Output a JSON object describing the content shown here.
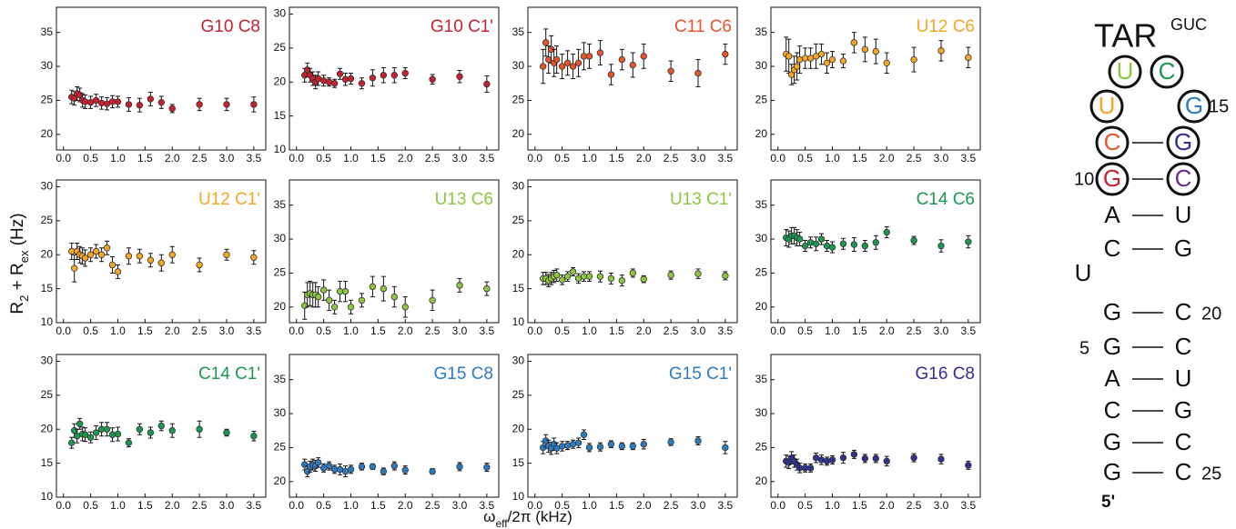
{
  "axis_labels": {
    "x": [
      "ω",
      "eff",
      "/2π (kHz)"
    ],
    "y": [
      "R",
      "2",
      " + R",
      "ex",
      " (Hz)"
    ]
  },
  "chart_data": [
    {
      "type": "scatter",
      "title": "G10 C8",
      "color": "#c8202f",
      "x": [
        0.15,
        0.2,
        0.25,
        0.3,
        0.35,
        0.4,
        0.5,
        0.6,
        0.7,
        0.8,
        0.9,
        1.0,
        1.2,
        1.4,
        1.6,
        1.8,
        2.0,
        2.5,
        3.0,
        3.5
      ],
      "values": [
        25.5,
        25.3,
        26,
        25.8,
        25,
        24.8,
        24.7,
        25,
        24.6,
        24.5,
        24.8,
        24.8,
        24.4,
        24.3,
        25.2,
        24.7,
        23.8,
        24.4,
        24.4,
        24.4
      ],
      "errors": [
        1,
        1,
        1,
        1,
        1,
        1,
        0.9,
        0.9,
        0.9,
        0.9,
        0.9,
        0.8,
        1,
        1,
        1,
        0.9,
        0.6,
        0.9,
        0.9,
        1.1
      ],
      "xlim": [
        -0.13,
        3.72
      ],
      "ylim": [
        17.7,
        38.7
      ],
      "xticks": [
        {
          "value": 0,
          "label": "0.0"
        },
        0.5,
        {
          "value": 1,
          "label": "1.0"
        },
        1.5,
        {
          "value": 2,
          "label": "2.0"
        },
        2.5,
        {
          "value": 3,
          "label": "3.0"
        },
        3.5
      ],
      "yticks": [
        20,
        25,
        30,
        35
      ]
    },
    {
      "type": "scatter",
      "title": "G10 C1'",
      "color": "#c8202f",
      "x": [
        0.15,
        0.2,
        0.25,
        0.3,
        0.35,
        0.4,
        0.5,
        0.6,
        0.7,
        0.8,
        0.9,
        1.0,
        1.2,
        1.4,
        1.6,
        1.8,
        2.0,
        2.5,
        3.0,
        3.5
      ],
      "values": [
        21,
        21.8,
        21,
        20.5,
        20,
        20.5,
        20.2,
        20,
        19.8,
        21.2,
        20.4,
        20.5,
        19.8,
        20.6,
        21,
        21,
        21.3,
        20.4,
        20.8,
        19.7
      ],
      "errors": [
        1,
        1,
        1,
        1,
        1,
        1,
        0.8,
        0.6,
        0.6,
        0.8,
        0.9,
        0.8,
        0.8,
        1.2,
        1.1,
        1.1,
        0.8,
        0.7,
        0.9,
        1.2
      ],
      "xlim": [
        -0.13,
        3.72
      ],
      "ylim": [
        10,
        31
      ],
      "xticks": [
        {
          "value": 0,
          "label": "0.0"
        },
        0.5,
        {
          "value": 1,
          "label": "1.0"
        },
        1.5,
        {
          "value": 2,
          "label": "2.0"
        },
        2.5,
        {
          "value": 3,
          "label": "3.0"
        },
        3.5
      ],
      "yticks": [
        10,
        15,
        20,
        25,
        30
      ]
    },
    {
      "type": "scatter",
      "title": "C11 C6",
      "color": "#e8542a",
      "x": [
        0.15,
        0.2,
        0.25,
        0.3,
        0.35,
        0.4,
        0.5,
        0.6,
        0.7,
        0.8,
        0.9,
        1.0,
        1.2,
        1.4,
        1.6,
        1.8,
        2.0,
        2.5,
        3.0,
        3.5
      ],
      "values": [
        30,
        33.5,
        31,
        32.5,
        30.5,
        31,
        30,
        30.5,
        30,
        30.5,
        31.5,
        31.5,
        32,
        28.8,
        31,
        30.2,
        31.5,
        29.3,
        29,
        31.8
      ],
      "errors": [
        2.5,
        2,
        2,
        2,
        2,
        2,
        1.8,
        1.8,
        1.8,
        2,
        2,
        1.8,
        1.8,
        1.5,
        1.5,
        1.8,
        1.8,
        1.5,
        2,
        1.5
      ],
      "xlim": [
        -0.13,
        3.72
      ],
      "ylim": [
        17.7,
        38.7
      ],
      "xticks": [
        {
          "value": 0,
          "label": "0.0"
        },
        0.5,
        {
          "value": 1,
          "label": "1.0"
        },
        1.5,
        {
          "value": 2,
          "label": "2.0"
        },
        2.5,
        {
          "value": 3,
          "label": "3.0"
        },
        3.5
      ],
      "yticks": [
        20,
        25,
        30,
        35
      ]
    },
    {
      "type": "scatter",
      "title": "U12 C6",
      "color": "#f5a623",
      "x": [
        0.15,
        0.2,
        0.25,
        0.3,
        0.35,
        0.4,
        0.5,
        0.6,
        0.7,
        0.8,
        0.9,
        1.0,
        1.2,
        1.4,
        1.6,
        1.8,
        2.0,
        2.5,
        3.0,
        3.5
      ],
      "values": [
        31.8,
        31.5,
        28.8,
        29.5,
        30,
        31,
        31.2,
        31.2,
        31.5,
        31.8,
        30.5,
        31,
        30.8,
        33.5,
        32.5,
        32.2,
        30.5,
        31,
        32.3,
        31.3
      ],
      "errors": [
        2.5,
        2.5,
        1.5,
        2,
        2,
        2,
        1.5,
        1.5,
        1.8,
        1.5,
        1.5,
        1.2,
        1,
        1.5,
        1.8,
        1.8,
        1.5,
        1.8,
        1.5,
        1.5
      ],
      "xlim": [
        -0.13,
        3.72
      ],
      "ylim": [
        17.7,
        38.7
      ],
      "xticks": [
        {
          "value": 0,
          "label": "0.0"
        },
        0.5,
        {
          "value": 1,
          "label": "1.0"
        },
        1.5,
        {
          "value": 2,
          "label": "2.0"
        },
        2.5,
        {
          "value": 3,
          "label": "3.0"
        },
        3.5
      ],
      "yticks": [
        20,
        25,
        30,
        35
      ]
    },
    {
      "type": "scatter",
      "title": "U12 C1'",
      "color": "#f5a623",
      "x": [
        0.15,
        0.2,
        0.25,
        0.3,
        0.35,
        0.4,
        0.5,
        0.6,
        0.7,
        0.8,
        0.9,
        1.0,
        1.2,
        1.4,
        1.6,
        1.8,
        2.0,
        2.5,
        3.0,
        3.5
      ],
      "values": [
        20.5,
        18,
        20.5,
        20,
        19.8,
        19.5,
        20,
        20.5,
        20,
        21,
        18.5,
        17.5,
        19.8,
        19.8,
        19.2,
        18.8,
        20,
        18.5,
        20,
        19.6
      ],
      "errors": [
        1.2,
        2,
        1.2,
        1.2,
        1.2,
        1.2,
        1,
        1,
        1,
        1,
        1.2,
        1,
        1.2,
        1,
        1,
        1.2,
        1.2,
        1,
        0.8,
        1
      ],
      "xlim": [
        -0.13,
        3.72
      ],
      "ylim": [
        10,
        31
      ],
      "xticks": [
        {
          "value": 0,
          "label": "0.0"
        },
        0.5,
        {
          "value": 1,
          "label": "1.0"
        },
        1.5,
        {
          "value": 2,
          "label": "2.0"
        },
        2.5,
        {
          "value": 3,
          "label": "3.0"
        },
        3.5
      ],
      "yticks": [
        10,
        15,
        20,
        25,
        30
      ]
    },
    {
      "type": "scatter",
      "title": "U13 C6",
      "color": "#8dc63f",
      "x": [
        0.15,
        0.2,
        0.25,
        0.3,
        0.35,
        0.4,
        0.5,
        0.6,
        0.7,
        0.8,
        0.9,
        1.0,
        1.2,
        1.4,
        1.6,
        1.8,
        2.0,
        2.5,
        3.0,
        3.5
      ],
      "values": [
        20.2,
        21.8,
        22,
        21.8,
        21.8,
        21.5,
        22.5,
        21,
        20,
        22.3,
        22.3,
        20,
        21,
        23,
        22.7,
        21.5,
        20,
        21,
        23.2,
        22.7
      ],
      "errors": [
        2,
        1.8,
        1.8,
        1.8,
        1.8,
        1.5,
        1.5,
        1.5,
        1,
        1.5,
        1.5,
        1,
        1,
        1.5,
        1.8,
        1.5,
        1.5,
        1.5,
        1,
        1
      ],
      "xlim": [
        -0.13,
        3.72
      ],
      "ylim": [
        17.7,
        38.7
      ],
      "xticks": [
        {
          "value": 0,
          "label": "0.0"
        },
        0.5,
        {
          "value": 1,
          "label": "1.0"
        },
        1.5,
        {
          "value": 2,
          "label": "2.0"
        },
        2.5,
        {
          "value": 3,
          "label": "3.0"
        },
        3.5
      ],
      "yticks": [
        20,
        25,
        30,
        35
      ]
    },
    {
      "type": "scatter",
      "title": "U13 C1'",
      "color": "#8dc63f",
      "x": [
        0.15,
        0.2,
        0.25,
        0.3,
        0.35,
        0.4,
        0.5,
        0.6,
        0.7,
        0.8,
        0.9,
        1.0,
        1.2,
        1.4,
        1.6,
        1.8,
        2.0,
        2.5,
        3.0,
        3.5
      ],
      "values": [
        16.5,
        16.5,
        16.2,
        16.5,
        16.8,
        17,
        16.3,
        16.8,
        17.5,
        16.5,
        16.8,
        16.8,
        16.8,
        16.5,
        16.2,
        17.3,
        16.4,
        17,
        17.2,
        16.9
      ],
      "errors": [
        0.9,
        0.9,
        0.9,
        0.9,
        0.9,
        0.9,
        0.7,
        0.7,
        0.6,
        0.7,
        0.7,
        0.7,
        0.8,
        0.8,
        0.8,
        0.6,
        0.5,
        0.6,
        0.7,
        0.6
      ],
      "xlim": [
        -0.13,
        3.72
      ],
      "ylim": [
        10,
        31
      ],
      "xticks": [
        {
          "value": 0,
          "label": "0.0"
        },
        0.5,
        {
          "value": 1,
          "label": "1.0"
        },
        1.5,
        {
          "value": 2,
          "label": "2.0"
        },
        2.5,
        {
          "value": 3,
          "label": "3.0"
        },
        3.5
      ],
      "yticks": [
        10,
        15,
        20,
        25,
        30
      ]
    },
    {
      "type": "scatter",
      "title": "C14 C6",
      "color": "#1a9850",
      "x": [
        0.15,
        0.2,
        0.25,
        0.3,
        0.35,
        0.4,
        0.5,
        0.6,
        0.7,
        0.8,
        0.9,
        1.0,
        1.2,
        1.4,
        1.6,
        1.8,
        2.0,
        2.5,
        3.0,
        3.5
      ],
      "values": [
        30.2,
        30,
        30.5,
        30.5,
        30.2,
        30,
        29,
        29.5,
        29.3,
        30,
        29,
        28.8,
        29.3,
        29.2,
        29,
        29.5,
        31,
        29.8,
        29,
        29.6
      ],
      "errors": [
        1.2,
        1.2,
        1.2,
        1.2,
        1.2,
        1,
        0.8,
        0.8,
        1,
        0.8,
        0.8,
        0.8,
        0.8,
        1,
        0.8,
        1,
        0.8,
        0.6,
        0.9,
        0.9
      ],
      "xlim": [
        -0.13,
        3.72
      ],
      "ylim": [
        17.7,
        38.7
      ],
      "xticks": [
        {
          "value": 0,
          "label": "0.0"
        },
        0.5,
        {
          "value": 1,
          "label": "1.0"
        },
        1.5,
        {
          "value": 2,
          "label": "2.0"
        },
        2.5,
        {
          "value": 3,
          "label": "3.0"
        },
        3.5
      ],
      "yticks": [
        20,
        25,
        30,
        35
      ]
    },
    {
      "type": "scatter",
      "title": "C14 C1'",
      "color": "#1a9850",
      "x": [
        0.15,
        0.2,
        0.25,
        0.3,
        0.35,
        0.4,
        0.5,
        0.6,
        0.7,
        0.8,
        0.9,
        1.0,
        1.2,
        1.4,
        1.6,
        1.8,
        2.0,
        2.5,
        3.0,
        3.5
      ],
      "values": [
        18,
        19.8,
        19,
        20.8,
        19.3,
        19.2,
        18.8,
        19.5,
        20,
        20,
        19.2,
        19.3,
        18,
        20,
        19.5,
        20.5,
        19.8,
        20,
        19.5,
        19
      ],
      "errors": [
        0.8,
        1,
        1,
        0.8,
        1,
        1,
        0.8,
        1,
        1,
        1,
        1,
        1,
        0.6,
        0.8,
        0.8,
        0.7,
        1,
        1.2,
        0.5,
        0.7
      ],
      "xlim": [
        -0.13,
        3.72
      ],
      "ylim": [
        10,
        31
      ],
      "xticks": [
        {
          "value": 0,
          "label": "0.0"
        },
        0.5,
        {
          "value": 1,
          "label": "1.0"
        },
        1.5,
        {
          "value": 2,
          "label": "2.0"
        },
        2.5,
        {
          "value": 3,
          "label": "3.0"
        },
        3.5
      ],
      "yticks": [
        10,
        15,
        20,
        25,
        30
      ]
    },
    {
      "type": "scatter",
      "title": "G15 C8",
      "color": "#2b7bc0",
      "x": [
        0.15,
        0.2,
        0.25,
        0.3,
        0.35,
        0.4,
        0.5,
        0.6,
        0.7,
        0.8,
        0.9,
        1.0,
        1.2,
        1.4,
        1.6,
        1.8,
        2.0,
        2.5,
        3.0,
        3.5
      ],
      "values": [
        22.5,
        21.5,
        22.2,
        22.5,
        22.3,
        22.8,
        22,
        22.3,
        21.8,
        21.8,
        21.5,
        21.8,
        22.2,
        22.2,
        21.5,
        22.3,
        21.7,
        21.5,
        22.2,
        22.1
      ],
      "errors": [
        0.8,
        0.8,
        0.8,
        0.8,
        0.8,
        0.7,
        0.6,
        0.6,
        0.6,
        0.8,
        0.8,
        0.6,
        0.5,
        0.4,
        0.5,
        0.6,
        0.6,
        0.4,
        0.6,
        0.6
      ],
      "xlim": [
        -0.13,
        3.72
      ],
      "ylim": [
        17.7,
        38.7
      ],
      "xticks": [
        {
          "value": 0,
          "label": "0.0"
        },
        0.5,
        {
          "value": 1,
          "label": "1.0"
        },
        1.5,
        {
          "value": 2,
          "label": "2.0"
        },
        2.5,
        {
          "value": 3,
          "label": "3.0"
        },
        3.5
      ],
      "yticks": [
        20,
        25,
        30,
        35
      ]
    },
    {
      "type": "scatter",
      "title": "G15 C1'",
      "color": "#2b7bc0",
      "x": [
        0.15,
        0.2,
        0.25,
        0.3,
        0.35,
        0.4,
        0.5,
        0.6,
        0.7,
        0.8,
        0.9,
        1.0,
        1.2,
        1.4,
        1.6,
        1.8,
        2.0,
        2.5,
        3.0,
        3.5
      ],
      "values": [
        17.3,
        18.3,
        17.5,
        17.2,
        17.8,
        17.2,
        17.5,
        17.6,
        17.8,
        18,
        19.2,
        17.3,
        17.4,
        17.8,
        17.5,
        17.5,
        17.8,
        18.1,
        18.3,
        17.3
      ],
      "errors": [
        0.9,
        0.9,
        0.9,
        0.9,
        0.9,
        0.8,
        0.7,
        0.6,
        0.6,
        0.7,
        0.7,
        0.6,
        0.6,
        0.5,
        0.5,
        0.5,
        0.7,
        0.5,
        0.6,
        0.9
      ],
      "xlim": [
        -0.13,
        3.72
      ],
      "ylim": [
        10,
        31
      ],
      "xticks": [
        {
          "value": 0,
          "label": "0.0"
        },
        0.5,
        {
          "value": 1,
          "label": "1.0"
        },
        1.5,
        {
          "value": 2,
          "label": "2.0"
        },
        2.5,
        {
          "value": 3,
          "label": "3.0"
        },
        3.5
      ],
      "yticks": [
        10,
        15,
        20,
        25,
        30
      ]
    },
    {
      "type": "scatter",
      "title": "G16 C8",
      "color": "#2e3192",
      "x": [
        0.15,
        0.2,
        0.25,
        0.3,
        0.35,
        0.4,
        0.5,
        0.6,
        0.7,
        0.8,
        0.9,
        1.0,
        1.2,
        1.4,
        1.6,
        1.8,
        2.0,
        2.5,
        3.0,
        3.5
      ],
      "values": [
        23,
        22.8,
        23.5,
        23,
        22.5,
        22,
        22,
        22,
        23.5,
        23.2,
        23,
        23.2,
        23.5,
        24,
        23.4,
        23.4,
        23,
        23.5,
        23.3,
        22.4
      ],
      "errors": [
        0.9,
        0.9,
        0.9,
        0.9,
        0.8,
        0.7,
        0.6,
        0.6,
        0.7,
        0.7,
        0.6,
        0.6,
        0.8,
        0.6,
        0.6,
        0.6,
        0.7,
        0.6,
        0.7,
        0.6
      ],
      "xlim": [
        -0.13,
        3.72
      ],
      "ylim": [
        17.7,
        38.7
      ],
      "xticks": [
        {
          "value": 0,
          "label": "0.0"
        },
        0.5,
        {
          "value": 1,
          "label": "1.0"
        },
        1.5,
        {
          "value": 2,
          "label": "2.0"
        },
        2.5,
        {
          "value": 3,
          "label": "3.0"
        },
        3.5
      ],
      "yticks": [
        20,
        25,
        30,
        35
      ]
    }
  ],
  "structure": {
    "title": "TAR",
    "title_superscript": "GUC",
    "nodes": [
      "U",
      "C",
      "U",
      "G",
      "C",
      "G",
      "G",
      "C",
      "A",
      "U",
      "C",
      "G",
      "U",
      "G",
      "C",
      "G",
      "C",
      "A",
      "U",
      "C",
      "G",
      "G",
      "C",
      "G",
      "C"
    ],
    "numbers": [
      "15",
      "10",
      "20",
      "5",
      "25"
    ],
    "end": "5'"
  }
}
